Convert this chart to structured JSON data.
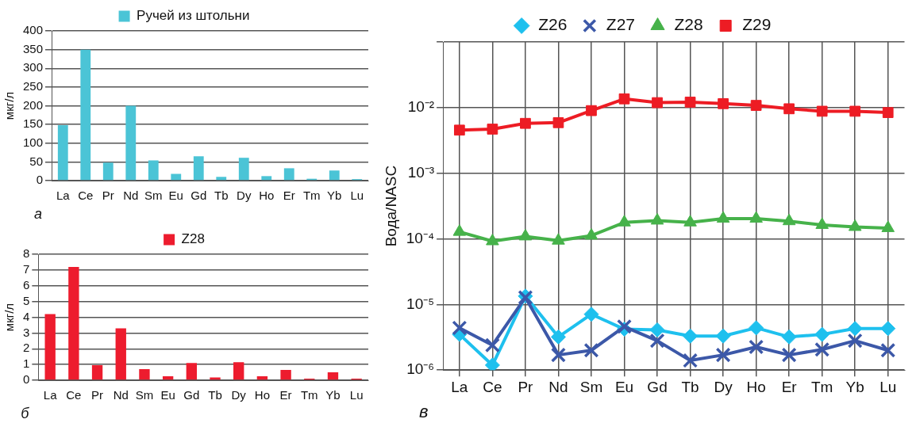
{
  "chart_data": [
    {
      "type": "bar",
      "ylabel": "мкг/л",
      "categories": [
        "La",
        "Ce",
        "Pr",
        "Nd",
        "Sm",
        "Eu",
        "Gd",
        "Tb",
        "Dy",
        "Ho",
        "Er",
        "Tm",
        "Yb",
        "Lu"
      ],
      "series": [
        {
          "name": "Ручей из штольни",
          "color": "#4bc4d6",
          "values": [
            148,
            350,
            48,
            200,
            54,
            18,
            65,
            10,
            61,
            12,
            33,
            5,
            27,
            4
          ]
        }
      ],
      "ylim": [
        0,
        400
      ],
      "yticks": [
        0,
        50,
        100,
        150,
        200,
        250,
        300,
        350,
        400
      ],
      "grid": "y",
      "legend": "top",
      "annotations": [
        "а"
      ]
    },
    {
      "type": "bar",
      "ylabel": "мкг/л",
      "categories": [
        "La",
        "Ce",
        "Pr",
        "Nd",
        "Sm",
        "Eu",
        "Gd",
        "Tb",
        "Dy",
        "Ho",
        "Er",
        "Tm",
        "Yb",
        "Lu"
      ],
      "series": [
        {
          "name": "Z28",
          "color": "#ed1c2e",
          "values": [
            4.2,
            7.2,
            0.95,
            3.3,
            0.7,
            0.25,
            1.1,
            0.17,
            1.15,
            0.25,
            0.65,
            0.1,
            0.5,
            0.1
          ]
        }
      ],
      "ylim": [
        0,
        8
      ],
      "yticks": [
        0,
        1,
        2,
        3,
        4,
        5,
        6,
        7,
        8
      ],
      "grid": "y",
      "legend": "top",
      "annotations": [
        "б"
      ]
    },
    {
      "type": "line",
      "ylabel": "Вода/NASC",
      "categories": [
        "La",
        "Ce",
        "Pr",
        "Nd",
        "Sm",
        "Eu",
        "Gd",
        "Tb",
        "Dy",
        "Ho",
        "Er",
        "Tm",
        "Yb",
        "Lu"
      ],
      "series": [
        {
          "name": "Z26",
          "color": "#1ec0ee",
          "marker": "diamond",
          "values": [
            3.5e-06,
            1.19e-06,
            1.34e-05,
            3.2e-06,
            7.1e-06,
            4.2e-06,
            4.1e-06,
            3.3e-06,
            3.3e-06,
            4.4e-06,
            3.2e-06,
            3.5e-06,
            4.3e-06,
            4.3e-06
          ]
        },
        {
          "name": "Z27",
          "color": "#3c58a8",
          "marker": "cross",
          "values": [
            4.4e-06,
            2.4e-06,
            1.28e-05,
            1.7e-06,
            2e-06,
            4.6e-06,
            2.8e-06,
            1.4e-06,
            1.7e-06,
            2.25e-06,
            1.7e-06,
            2.06e-06,
            2.8e-06,
            2e-06
          ]
        },
        {
          "name": "Z28",
          "color": "#46b24a",
          "marker": "triangle",
          "values": [
            0.000128,
            9.2e-05,
            0.000109,
            9.4e-05,
            0.000112,
            0.000178,
            0.00019,
            0.000178,
            0.000203,
            0.000203,
            0.000186,
            0.000163,
            0.000152,
            0.000146
          ]
        },
        {
          "name": "Z29",
          "color": "#ed1c24",
          "marker": "square",
          "values": [
            0.00454,
            0.0047,
            0.00575,
            0.0059,
            0.009,
            0.0136,
            0.0119,
            0.0121,
            0.0115,
            0.0108,
            0.0096,
            0.0088,
            0.0088,
            0.0084
          ]
        }
      ],
      "log": "y",
      "ylim": [
        1e-06,
        0.1
      ],
      "yticks": [
        {
          "value": 1e-06,
          "label": "10⁻⁶"
        },
        {
          "value": 1e-05,
          "label": "10⁻⁵"
        },
        {
          "value": 0.0001,
          "label": "10⁻⁴"
        },
        {
          "value": 0.001,
          "label": "10⁻³"
        },
        {
          "value": 0.01,
          "label": "10⁻²"
        },
        {
          "value": 0.1,
          "label": null
        }
      ],
      "grid": true,
      "legend": "top",
      "line_style": "solid",
      "annotations": [
        "в"
      ]
    }
  ]
}
